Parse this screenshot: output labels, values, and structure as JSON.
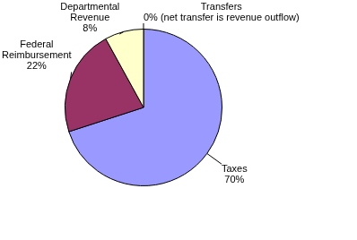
{
  "chart_data": {
    "type": "pie",
    "categories": [
      "Taxes",
      "Federal Reimbursement",
      "Departmental Revenue",
      "Transfers"
    ],
    "values": [
      70,
      22,
      8,
      0
    ],
    "value_labels": [
      "70%",
      "22%",
      "8%",
      "0% (net transfer is revenue outflow)"
    ],
    "colors": [
      "#9999ff",
      "#993366",
      "#ffffcc",
      "#ccffff"
    ],
    "data_labels": true
  }
}
